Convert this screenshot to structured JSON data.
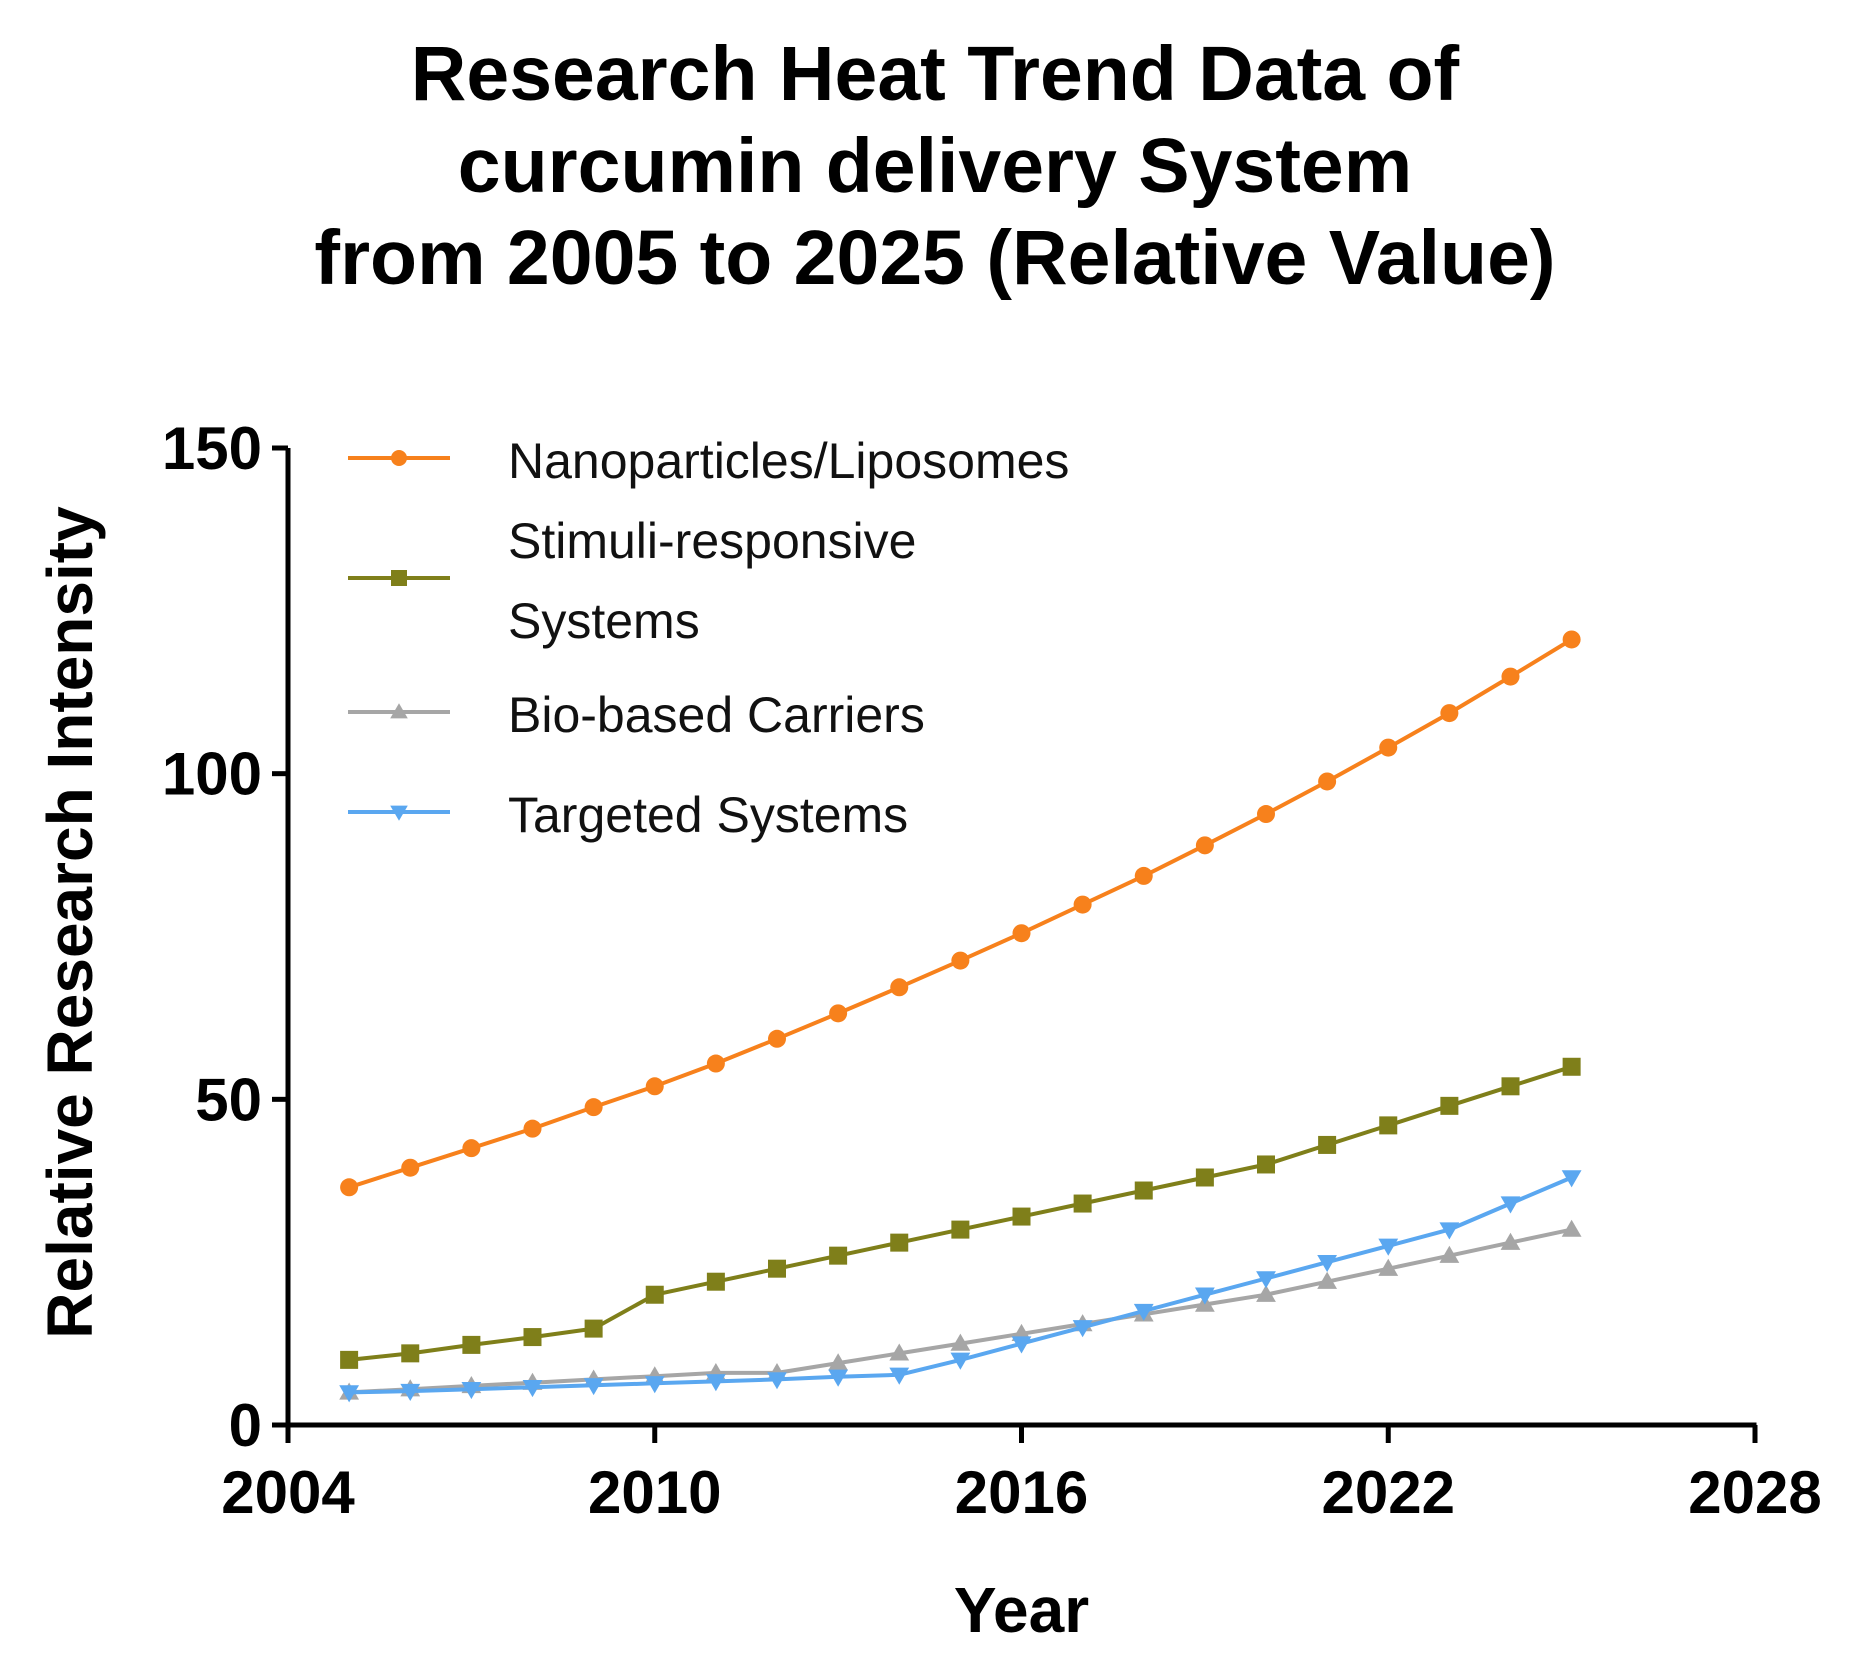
{
  "chart_data": {
    "type": "line",
    "title": "Research Heat Trend Data of curcumin delivery System from 2005 to 2025 (Relative Value)",
    "title_lines": [
      "Research Heat Trend Data of",
      "curcumin delivery System",
      "from 2005 to 2025 (Relative Value)"
    ],
    "xlabel": "Year",
    "ylabel": "Relative Research Intensity",
    "xlim": [
      2004,
      2028
    ],
    "ylim": [
      0,
      150
    ],
    "xticks": [
      2004,
      2010,
      2016,
      2022,
      2028
    ],
    "yticks": [
      0,
      50,
      100,
      150
    ],
    "legend_position": "top-left",
    "x": [
      2005,
      2006,
      2007,
      2008,
      2009,
      2010,
      2011,
      2012,
      2013,
      2014,
      2015,
      2016,
      2017,
      2018,
      2019,
      2020,
      2021,
      2022,
      2023,
      2024,
      2025
    ],
    "series": [
      {
        "name": "Nanoparticles/Liposomes",
        "legend_lines": [
          "Nanoparticles/Liposomes"
        ],
        "color": "#f7811c",
        "marker": "circle",
        "values": [
          36.5,
          39.5,
          42.5,
          45.5,
          48.8,
          52.0,
          55.5,
          59.3,
          63.2,
          67.2,
          71.3,
          75.5,
          79.9,
          84.3,
          89.0,
          93.8,
          98.8,
          104.0,
          109.3,
          114.9,
          120.6
        ]
      },
      {
        "name": "Stimuli-responsive Systems",
        "legend_lines": [
          "Stimuli-responsive",
          "Systems"
        ],
        "color": "#7f7f1a",
        "marker": "square",
        "values": [
          10.0,
          11.0,
          12.3,
          13.5,
          14.8,
          20.0,
          22.0,
          24.0,
          26.0,
          28.0,
          30.0,
          32.0,
          34.0,
          36.0,
          38.0,
          40.0,
          43.0,
          46.0,
          49.0,
          52.0,
          55.0
        ]
      },
      {
        "name": "Bio-based Carriers",
        "legend_lines": [
          "Bio-based Carriers"
        ],
        "color": "#a6a6a6",
        "marker": "triangle-up",
        "values": [
          5.0,
          5.5,
          6.0,
          6.5,
          7.0,
          7.5,
          8.0,
          8.0,
          9.5,
          11.0,
          12.5,
          14.0,
          15.5,
          17.0,
          18.5,
          20.0,
          22.0,
          24.0,
          26.0,
          28.0,
          30.0
        ]
      },
      {
        "name": "Targeted Systems",
        "legend_lines": [
          "Targeted Systems"
        ],
        "color": "#5aa7f0",
        "marker": "triangle-down",
        "values": [
          5.0,
          5.2,
          5.5,
          5.8,
          6.1,
          6.4,
          6.7,
          7.0,
          7.4,
          7.7,
          10.0,
          12.5,
          15.0,
          17.5,
          20.0,
          22.5,
          25.0,
          27.5,
          30.0,
          34.0,
          38.0
        ]
      }
    ]
  }
}
